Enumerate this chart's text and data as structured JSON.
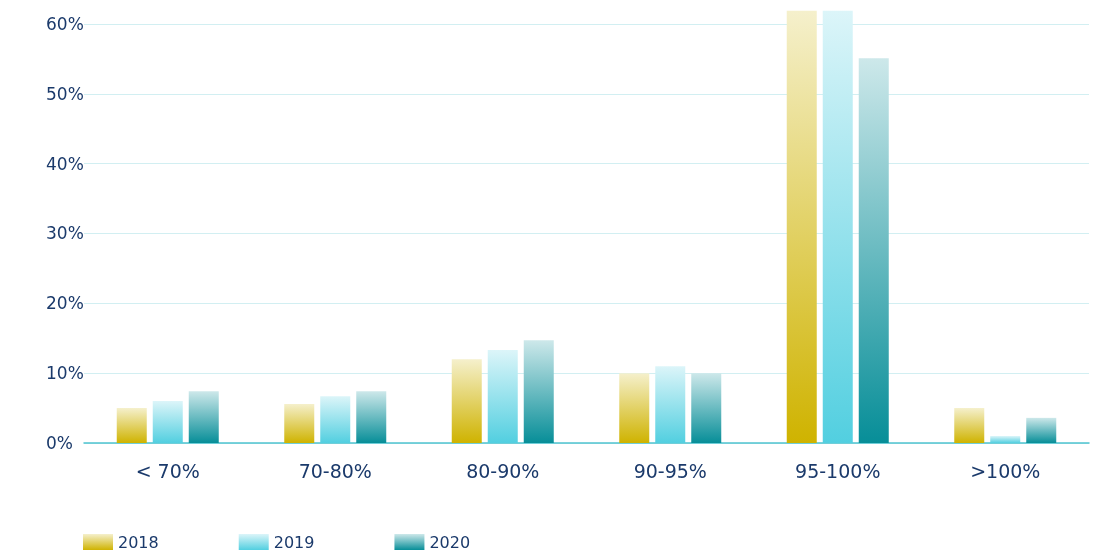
{
  "chart_data": {
    "type": "bar",
    "categories": [
      "< 70%",
      "70-80%",
      "80-90%",
      "90-95%",
      "95-100%",
      ">100%"
    ],
    "series": [
      {
        "name": "2018",
        "color": "#cfb300",
        "values": [
          5.0,
          5.6,
          12.0,
          10.0,
          61.9,
          5.0
        ]
      },
      {
        "name": "2019",
        "color": "#52cfe0",
        "values": [
          6.0,
          6.7,
          13.3,
          11.0,
          61.9,
          1.0
        ]
      },
      {
        "name": "2020",
        "color": "#078e98",
        "values": [
          7.4,
          7.4,
          14.7,
          10.0,
          55.1,
          3.6
        ]
      }
    ],
    "ylim": [
      0,
      62
    ],
    "yticks": [
      {
        "value": 0,
        "label": "0%"
      },
      {
        "value": 10,
        "label": "10%"
      },
      {
        "value": 20,
        "label": "20%"
      },
      {
        "value": 30,
        "label": "30%"
      },
      {
        "value": 40,
        "label": "40%"
      },
      {
        "value": 50,
        "label": "50%"
      },
      {
        "value": 60,
        "label": "60%"
      }
    ],
    "grid": "y",
    "legend": "bottom left"
  }
}
